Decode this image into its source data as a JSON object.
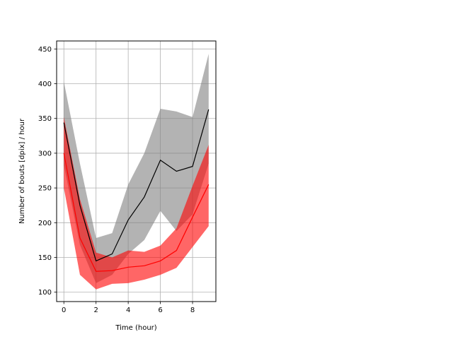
{
  "chart_data": {
    "type": "line",
    "xlabel": "Time (hour)",
    "ylabel": "Number of bouts [dpix]  / hour",
    "xlim": [
      -0.45,
      9.45
    ],
    "ylim": [
      86.5,
      461.5
    ],
    "xticks": [
      0,
      2,
      4,
      6,
      8
    ],
    "yticks": [
      100,
      150,
      200,
      250,
      300,
      350,
      400,
      450
    ],
    "grid": true,
    "x": [
      0,
      1,
      2,
      3,
      4,
      5,
      6,
      7,
      8,
      9
    ],
    "series": [
      {
        "color": "#000000",
        "band_color": "#808080",
        "values": [
          344,
          225,
          145,
          155,
          204,
          237,
          290,
          274,
          281,
          363
        ],
        "upper": [
          403,
          285,
          178,
          185,
          255,
          300,
          364,
          360,
          352,
          443
        ],
        "lower": [
          283,
          168,
          113,
          125,
          155,
          175,
          217,
          188,
          212,
          285
        ]
      },
      {
        "color": "#ff0000",
        "band_color": "#ff0000",
        "values": [
          300,
          178,
          130,
          131,
          136,
          138,
          145,
          160,
          208,
          255
        ],
        "upper": [
          352,
          234,
          157,
          150,
          160,
          158,
          167,
          192,
          253,
          312
        ],
        "lower": [
          250,
          125,
          104,
          112,
          113,
          118,
          125,
          135,
          165,
          195
        ]
      }
    ]
  }
}
